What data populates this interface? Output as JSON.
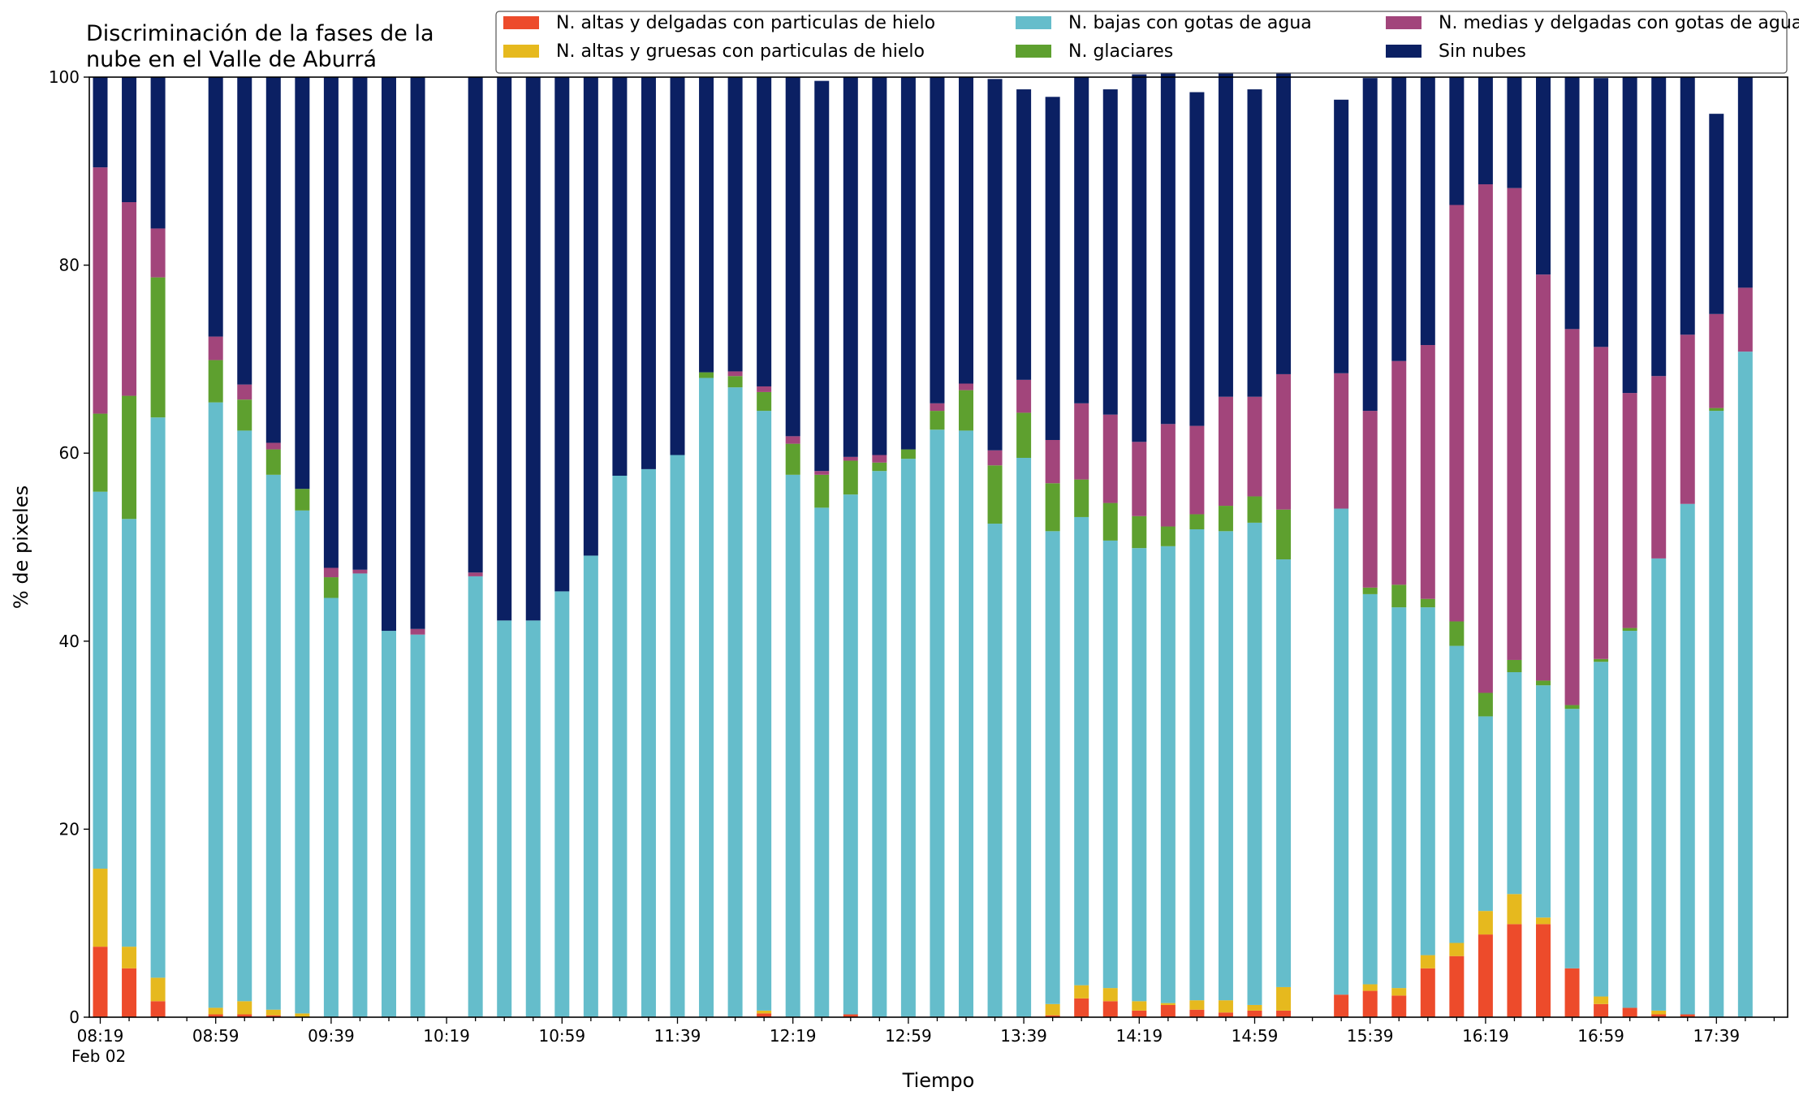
{
  "chart_data": {
    "type": "bar",
    "stacked": true,
    "title": "Discriminación de la fases de la\nnube en el Valle de Aburrá",
    "xlabel": "Tiempo",
    "ylabel": "% de pixeles",
    "ylim": [
      0,
      100
    ],
    "yticks": [
      0,
      20,
      40,
      60,
      80,
      100
    ],
    "grid": false,
    "legend_position": "top-right",
    "legend_columns": 3,
    "date_label": "Feb 02",
    "xtick_labels": [
      {
        "label": "08:19",
        "at_index": 0
      },
      {
        "label": "08:59",
        "at_index": 4
      },
      {
        "label": "09:39",
        "at_index": 8
      },
      {
        "label": "10:19",
        "at_index": 12
      },
      {
        "label": "10:59",
        "at_index": 16
      },
      {
        "label": "11:39",
        "at_index": 20
      },
      {
        "label": "12:19",
        "at_index": 24
      },
      {
        "label": "12:59",
        "at_index": 28
      },
      {
        "label": "13:39",
        "at_index": 32
      },
      {
        "label": "14:19",
        "at_index": 36
      },
      {
        "label": "14:59",
        "at_index": 40
      },
      {
        "label": "15:39",
        "at_index": 44
      },
      {
        "label": "16:19",
        "at_index": 48
      },
      {
        "label": "16:59",
        "at_index": 52
      },
      {
        "label": "17:39",
        "at_index": 56
      }
    ],
    "slot_count": 59,
    "present_slots": [
      0,
      1,
      2,
      4,
      5,
      6,
      7,
      8,
      9,
      10,
      11,
      13,
      14,
      15,
      16,
      17,
      18,
      19,
      20,
      21,
      22,
      23,
      24,
      25,
      26,
      27,
      28,
      29,
      30,
      31,
      32,
      33,
      34,
      35,
      36,
      37,
      38,
      39,
      40,
      41,
      43,
      44,
      45,
      46,
      47,
      48,
      49,
      50,
      51,
      52,
      53,
      54,
      55,
      56,
      57
    ],
    "series": [
      {
        "name": "N. altas y delgadas con particulas de hielo",
        "color": "#ed4b2b",
        "values": [
          7.5,
          5.2,
          1.7,
          0.3,
          0.3,
          0.2,
          0,
          0,
          0,
          0,
          0,
          0,
          0,
          0,
          0,
          0,
          0,
          0,
          0,
          0,
          0,
          0.4,
          0,
          0,
          0.3,
          0,
          0,
          0,
          0,
          0,
          0,
          0.2,
          2.0,
          1.7,
          0.7,
          1.3,
          0.8,
          0.5,
          0.7,
          0.7,
          2.4,
          2.8,
          2.3,
          5.2,
          6.5,
          8.8,
          9.9,
          9.9,
          5.2,
          1.4,
          1.0,
          0.3,
          0.3,
          0,
          0
        ]
      },
      {
        "name": "N. altas y gruesas con particulas de hielo",
        "color": "#e6b91e",
        "values": [
          8.3,
          2.3,
          2.5,
          0.7,
          1.4,
          0.6,
          0.4,
          0,
          0,
          0,
          0,
          0,
          0,
          0,
          0,
          0,
          0,
          0,
          0,
          0,
          0,
          0.3,
          0,
          0,
          0,
          0,
          0,
          0,
          0,
          0,
          0,
          1.2,
          1.4,
          1.4,
          1.0,
          0.2,
          1.0,
          1.3,
          0.6,
          2.5,
          0,
          0.7,
          0.8,
          1.4,
          1.4,
          2.5,
          3.2,
          0.7,
          0,
          0.8,
          0,
          0.4,
          0,
          0,
          0
        ]
      },
      {
        "name": "N. bajas con gotas de agua",
        "color": "#65bdcb",
        "values": [
          40.1,
          45.5,
          59.6,
          64.4,
          60.7,
          56.9,
          53.5,
          44.6,
          47.2,
          41.1,
          40.7,
          46.9,
          42.2,
          42.2,
          45.3,
          49.1,
          57.6,
          58.3,
          59.8,
          68.0,
          67.0,
          63.8,
          57.7,
          54.2,
          55.3,
          58.1,
          59.4,
          62.5,
          62.4,
          52.5,
          59.5,
          50.3,
          49.8,
          47.6,
          48.2,
          48.6,
          50.1,
          49.9,
          51.3,
          45.5,
          51.7,
          41.5,
          40.5,
          37.0,
          31.6,
          20.7,
          23.6,
          24.7,
          27.6,
          35.6,
          40.1,
          48.1,
          54.3,
          64.5,
          70.8
        ]
      },
      {
        "name": "N. glaciares",
        "color": "#5ea02f",
        "values": [
          8.3,
          13.1,
          14.9,
          4.5,
          3.3,
          2.7,
          2.3,
          2.2,
          0,
          0,
          0,
          0,
          0,
          0,
          0,
          0,
          0,
          0,
          0,
          0.6,
          1.2,
          2.0,
          3.3,
          3.5,
          3.6,
          0.9,
          1.0,
          2.0,
          4.3,
          6.2,
          4.8,
          5.1,
          4.0,
          4.0,
          3.4,
          2.1,
          1.6,
          2.7,
          2.8,
          5.3,
          0,
          0.7,
          2.4,
          0.9,
          2.6,
          2.5,
          1.3,
          0.5,
          0.4,
          0.3,
          0.3,
          0,
          0,
          0.3,
          0
        ]
      },
      {
        "name": "N. medias y delgadas con gotas de agua",
        "color": "#a2457b",
        "values": [
          26.2,
          20.6,
          5.2,
          2.5,
          1.6,
          0.7,
          0,
          1.0,
          0.4,
          0,
          0.6,
          0.4,
          0,
          0,
          0,
          0,
          0,
          0,
          0,
          0,
          0.5,
          0.6,
          0.8,
          0.4,
          0.4,
          0.8,
          0,
          0.8,
          0.7,
          1.6,
          3.5,
          4.6,
          8.1,
          9.4,
          7.9,
          10.9,
          9.4,
          11.6,
          10.6,
          14.4,
          14.4,
          18.8,
          23.8,
          27.0,
          44.3,
          54.1,
          50.2,
          43.2,
          40.0,
          33.2,
          25.0,
          19.4,
          18.0,
          10.0,
          6.8
        ]
      },
      {
        "name": "Sin nubes",
        "color": "#0b2063",
        "values": [
          9.6,
          13.3,
          16.1,
          27.6,
          32.7,
          38.9,
          43.8,
          52.2,
          52.4,
          58.9,
          58.7,
          52.7,
          57.8,
          57.8,
          54.7,
          50.9,
          42.4,
          41.7,
          40.2,
          31.4,
          31.3,
          32.9,
          38.2,
          41.5,
          40.4,
          40.2,
          39.6,
          34.7,
          32.6,
          39.5,
          30.9,
          36.5,
          34.7,
          34.6,
          39.1,
          38.8,
          35.5,
          38.6,
          32.7,
          33.3,
          29.1,
          35.4,
          30.2,
          28.5,
          13.6,
          11.4,
          11.8,
          21.0,
          26.8,
          28.6,
          33.6,
          31.8,
          27.4,
          21.3,
          22.4
        ]
      }
    ]
  }
}
